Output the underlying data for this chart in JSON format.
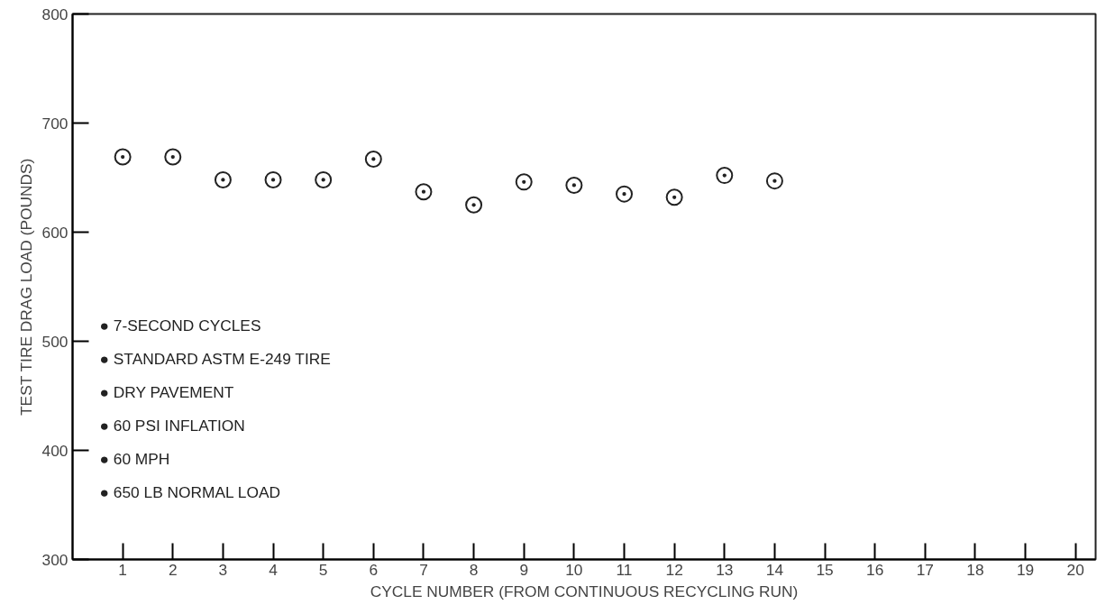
{
  "chart_data": {
    "type": "scatter",
    "xlabel": "CYCLE NUMBER (FROM CONTINUOUS RECYCLING RUN)",
    "ylabel": "TEST TIRE DRAG LOAD (POUNDS)",
    "x": [
      1,
      2,
      3,
      4,
      5,
      6,
      7,
      8,
      9,
      10,
      11,
      12,
      13,
      14
    ],
    "series": [
      {
        "color": "#222222",
        "values": [
          669,
          669,
          648,
          648,
          648,
          667,
          637,
          625,
          646,
          643,
          635,
          632,
          652,
          647
        ]
      }
    ],
    "xlim": [
      0,
      20.4
    ],
    "ylim": [
      300,
      800
    ],
    "xticks": [
      1,
      2,
      3,
      4,
      5,
      6,
      7,
      8,
      9,
      10,
      11,
      12,
      13,
      14,
      15,
      16,
      17,
      18,
      19,
      20
    ],
    "yticks": [
      300,
      400,
      500,
      600,
      700,
      800
    ],
    "marker": "circle",
    "grid": false,
    "annotations": [
      "● 7-SECOND CYCLES",
      "● STANDARD ASTM E-249 TIRE",
      "● DRY PAVEMENT",
      "● 60 PSI INFLATION",
      "● 60 MPH",
      "● 650 LB NORMAL LOAD"
    ]
  }
}
